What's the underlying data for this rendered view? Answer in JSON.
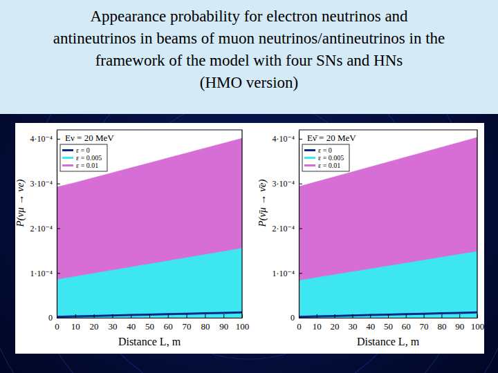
{
  "header": {
    "title_lines": [
      "Appearance probability for electron neutrinos and",
      "antineutrinos in beams of muon neutrinos/antineutrinos in the",
      "framework of the model with four SNs and HNs",
      "(HMO version)"
    ]
  },
  "chart_data": [
    {
      "type": "area",
      "annotation": "Eν = 20 MeV",
      "xlabel": "Distance L, m",
      "ylabel": "P(νμ → νe)",
      "x": [
        0,
        10,
        20,
        30,
        40,
        50,
        60,
        70,
        80,
        90,
        100
      ],
      "series": [
        {
          "name": "ε = 0",
          "type": "line",
          "color": "#0a2a8a",
          "values": [
            2e-06,
            3e-06,
            4e-06,
            5e-06,
            6e-06,
            7e-06,
            8e-06,
            9e-06,
            1e-05,
            1.1e-05,
            1.2e-05
          ]
        },
        {
          "name": "ε = 0.005",
          "type": "area",
          "color": "#3ee6f2",
          "values": [
            8.5e-05,
            9.2e-05,
            9.9e-05,
            0.000106,
            0.000113,
            0.00012,
            0.000127,
            0.000134,
            0.000141,
            0.000148,
            0.000155
          ]
        },
        {
          "name": "ε = 0.01",
          "type": "area",
          "color": "#d66ed6",
          "values": [
            0.000292,
            0.000302,
            0.000313,
            0.000324,
            0.000335,
            0.000346,
            0.000357,
            0.000368,
            0.000379,
            0.00039,
            0.000401
          ]
        }
      ],
      "xlim": [
        0,
        100
      ],
      "ylim": [
        0,
        0.00042
      ],
      "xticks": [
        0,
        10,
        20,
        30,
        40,
        50,
        60,
        70,
        80,
        90,
        100
      ],
      "yticks": [
        0,
        {
          "value": 0.0001,
          "label": "1·10⁻⁴"
        },
        {
          "value": 0.0002,
          "label": "2·10⁻⁴"
        },
        {
          "value": 0.0003,
          "label": "3·10⁻⁴"
        },
        {
          "value": 0.0004,
          "label": "4·10⁻⁴"
        }
      ],
      "legend": "upper left"
    },
    {
      "type": "area",
      "annotation": "Eν̄ = 20 MeV",
      "xlabel": "Distance L, m",
      "ylabel": "P(ν̄μ → ν̄e)",
      "x": [
        0,
        10,
        20,
        30,
        40,
        50,
        60,
        70,
        80,
        90,
        100
      ],
      "series": [
        {
          "name": "ε = 0",
          "type": "line",
          "color": "#0a2a8a",
          "values": [
            2e-06,
            3e-06,
            4e-06,
            5e-06,
            6e-06,
            7e-06,
            8e-06,
            9e-06,
            1e-05,
            1.1e-05,
            1.2e-05
          ]
        },
        {
          "name": "ε = 0.005",
          "type": "area",
          "color": "#3ee6f2",
          "values": [
            8.3e-05,
            8.95e-05,
            9.6e-05,
            0.0001025,
            0.000109,
            0.0001155,
            0.000122,
            0.0001285,
            0.000135,
            0.0001415,
            0.000148
          ]
        },
        {
          "name": "ε = 0.01",
          "type": "area",
          "color": "#d66ed6",
          "values": [
            0.000293,
            0.000304,
            0.000315,
            0.000326,
            0.000337,
            0.000348,
            0.000359,
            0.00037,
            0.000381,
            0.000392,
            0.000403
          ]
        }
      ],
      "xlim": [
        0,
        100
      ],
      "ylim": [
        0,
        0.00042
      ],
      "xticks": [
        0,
        10,
        20,
        30,
        40,
        50,
        60,
        70,
        80,
        90,
        100
      ],
      "yticks": [
        0,
        {
          "value": 0.0001,
          "label": "1·10⁻⁴"
        },
        {
          "value": 0.0002,
          "label": "2·10⁻⁴"
        },
        {
          "value": 0.0003,
          "label": "3·10⁻⁴"
        },
        {
          "value": 0.0004,
          "label": "4·10⁻⁴"
        }
      ],
      "legend": "upper left"
    }
  ]
}
